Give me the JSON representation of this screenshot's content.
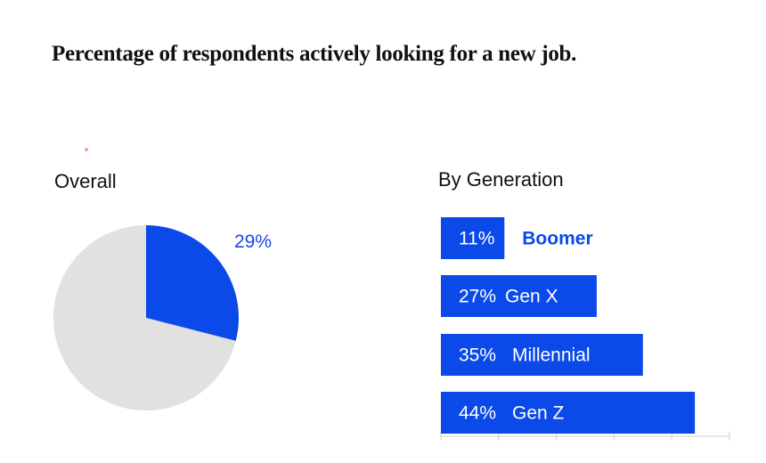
{
  "title": "Percentage of respondents actively looking for a new job.",
  "colors": {
    "accent": "#0b4ae8",
    "pie_rest": "#e1e1e1",
    "text": "#111111"
  },
  "chart_data": [
    {
      "type": "pie",
      "title": "Overall",
      "slices": [
        {
          "label": "29%",
          "value": 29,
          "color": "#0b4ae8"
        },
        {
          "label": "",
          "value": 71,
          "color": "#e1e1e1"
        }
      ]
    },
    {
      "type": "bar",
      "orientation": "horizontal",
      "title": "By Generation",
      "categories": [
        "Boomer",
        "Gen X",
        "Millennial",
        "Gen Z"
      ],
      "values": [
        11,
        27,
        35,
        44
      ],
      "value_labels": [
        "11%",
        "27%",
        "35%",
        "44%"
      ],
      "xlim": [
        0,
        50
      ],
      "color": "#0b4ae8"
    }
  ]
}
